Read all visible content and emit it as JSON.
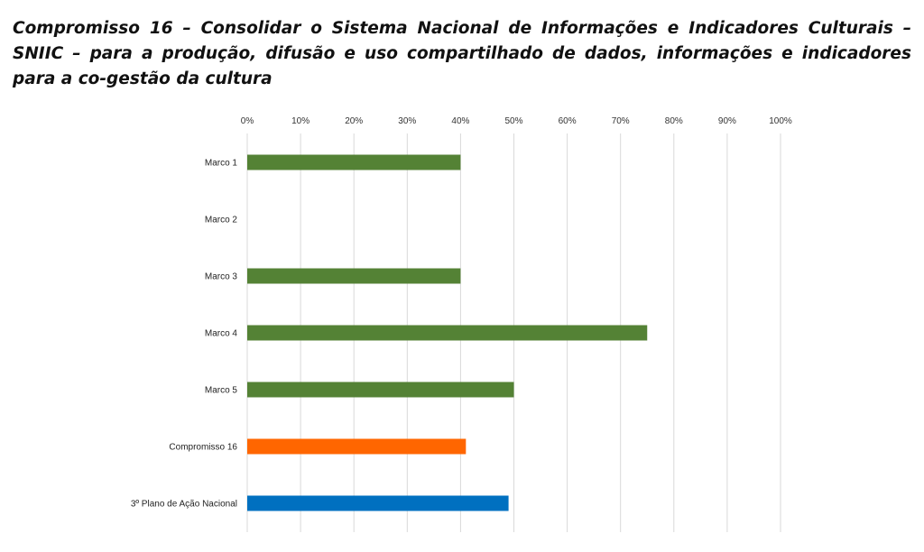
{
  "title": "Compromisso 16 – Consolidar o Sistema Nacional de Informações e Indicadores Culturais – SNIIC – para a produção, difusão e uso compartilhado de dados, informações e indicadores para a co-gestão da cultura",
  "chart_data": {
    "type": "bar",
    "orientation": "horizontal",
    "title": "Compromisso 16 – Consolidar o Sistema Nacional de Informações e Indicadores Culturais – SNIIC – para a produção, difusão e uso compartilhado de dados, informações e indicadores para a co-gestão da cultura",
    "categories": [
      "Marco 1",
      "Marco 2",
      "Marco 3",
      "Marco 4",
      "Marco 5",
      "Compromisso 16",
      "3º Plano de Ação Nacional"
    ],
    "values": [
      40,
      0,
      40,
      75,
      50,
      41,
      49
    ],
    "colors": [
      "#548235",
      "#548235",
      "#548235",
      "#548235",
      "#548235",
      "#ff6600",
      "#0070c0"
    ],
    "xlim": [
      0,
      100
    ],
    "x_ticks": [
      "0%",
      "10%",
      "20%",
      "30%",
      "40%",
      "50%",
      "60%",
      "70%",
      "80%",
      "90%",
      "100%"
    ],
    "axis_position": "top",
    "grid": true,
    "xlabel": "",
    "ylabel": ""
  }
}
